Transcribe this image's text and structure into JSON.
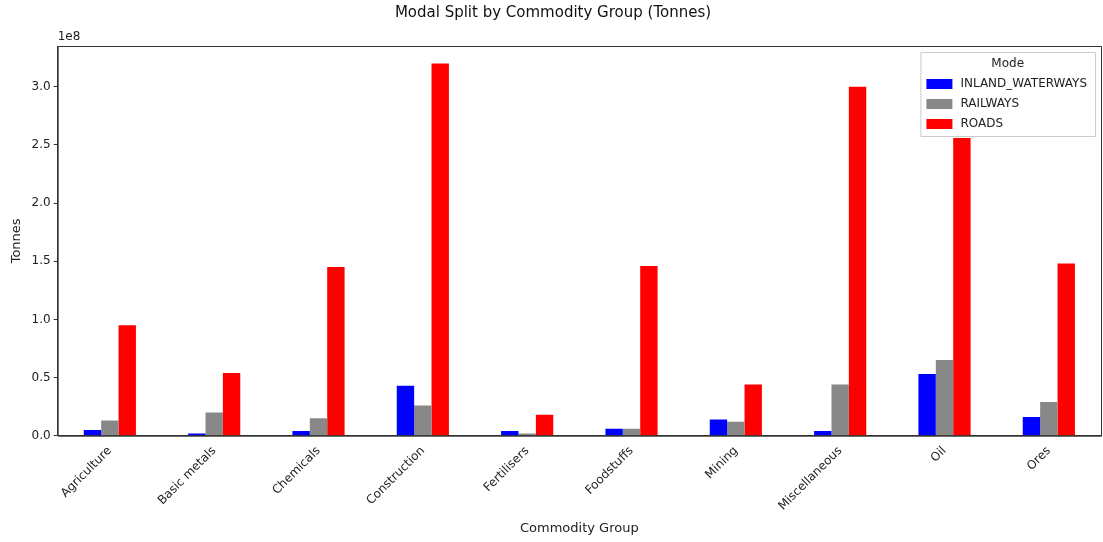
{
  "chart_data": {
    "type": "bar",
    "title": "Modal Split by Commodity Group (Tonnes)",
    "xlabel": "Commodity Group",
    "ylabel": "Tonnes",
    "legend_title": "Mode",
    "categories": [
      "Agriculture",
      "Basic metals",
      "Chemicals",
      "Construction",
      "Fertilisers",
      "Foodstuffs",
      "Mining",
      "Miscellaneous",
      "Oil",
      "Ores"
    ],
    "series": [
      {
        "name": "INLAND_WATERWAYS",
        "color": "#0000ff",
        "values": [
          0.05,
          0.02,
          0.04,
          0.43,
          0.04,
          0.06,
          0.14,
          0.04,
          0.53,
          0.16
        ]
      },
      {
        "name": "RAILWAYS",
        "color": "#888888",
        "values": [
          0.13,
          0.2,
          0.15,
          0.26,
          0.02,
          0.06,
          0.12,
          0.44,
          0.65,
          0.29
        ]
      },
      {
        "name": "ROADS",
        "color": "#ff0000",
        "values": [
          0.95,
          0.54,
          1.45,
          3.2,
          0.18,
          1.46,
          0.44,
          3.0,
          2.56,
          1.48
        ]
      }
    ],
    "ylim": [
      0,
      3.35
    ],
    "yticks": [
      {
        "value": 0,
        "label": "0.0"
      },
      {
        "value": 0.5,
        "label": "0.5"
      },
      {
        "value": 1,
        "label": "1.0"
      },
      {
        "value": 1.5,
        "label": "1.5"
      },
      {
        "value": 2,
        "label": "2.0"
      },
      {
        "value": 2.5,
        "label": "2.5"
      },
      {
        "value": 3,
        "label": "3.0"
      }
    ],
    "annotations": [
      "1e8"
    ],
    "grid": false,
    "legend": "top right"
  }
}
